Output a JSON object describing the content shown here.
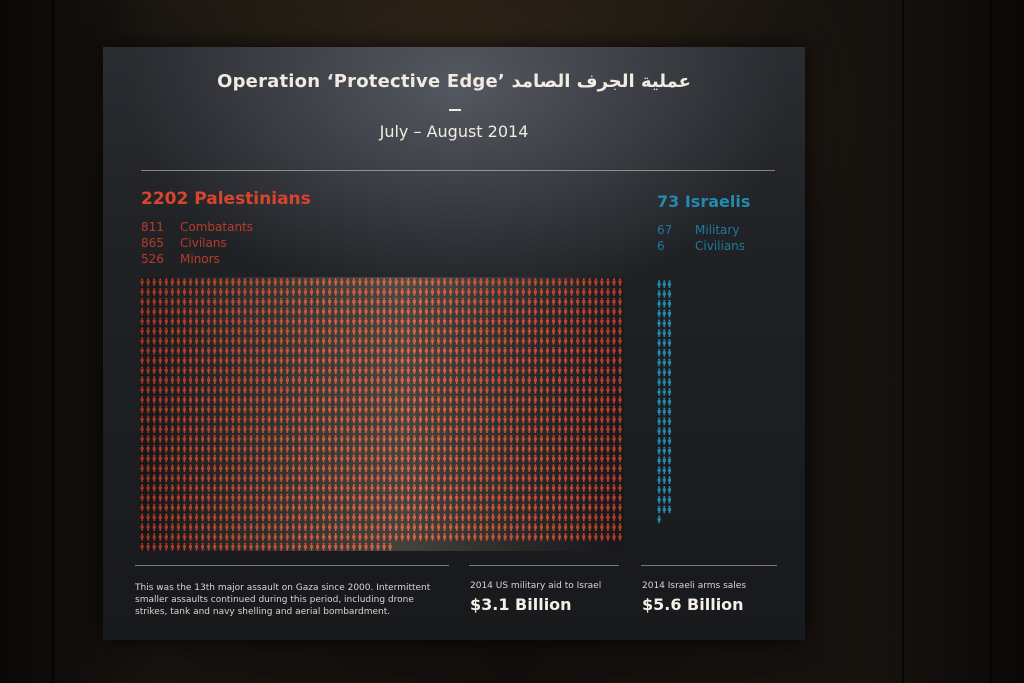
{
  "title": "Operation ‘Protective Edge’ عملية الجرف الصامد",
  "subtitle": "July – August 2014",
  "palestinians": {
    "heading": "2202 Palestinians",
    "total": 2202,
    "color": "#d8452e",
    "breakdown": [
      {
        "value": "811",
        "label": "Combatants"
      },
      {
        "value": "865",
        "label": "Civilans"
      },
      {
        "value": "526",
        "label": "Minors"
      }
    ]
  },
  "israelis": {
    "heading": "73 Israelis",
    "total": 73,
    "color": "#2389ad",
    "breakdown": [
      {
        "value": "67",
        "label": "Military"
      },
      {
        "value": "6",
        "label": "Civilians"
      }
    ]
  },
  "note": "This was the 13th major assault on Gaza since 2000. Intermittent smaller assaults continued during this period, including drone strikes, tank and navy shelling and aerial bombardment.",
  "stats": [
    {
      "label": "2014 US military aid to Israel",
      "value": "$3.1 Billion"
    },
    {
      "label": "2014 Israeli arms sales",
      "value": "$5.6 Billion"
    }
  ]
}
